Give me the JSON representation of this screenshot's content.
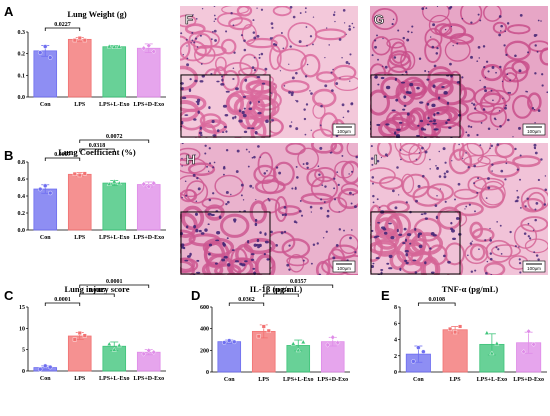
{
  "figure": {
    "panel_letters": [
      "A",
      "B",
      "C",
      "D",
      "E",
      "F",
      "G",
      "H",
      "I"
    ]
  },
  "micrographs": [
    {
      "letter": "F",
      "scale_label": "100μm",
      "style": {
        "base": "#f3c8da",
        "tissue": "#d9689c",
        "nuclei": "#4a2a7a"
      }
    },
    {
      "letter": "G",
      "scale_label": "100μm",
      "style": {
        "base": "#e7a6c6",
        "tissue": "#c84e8a",
        "nuclei": "#3d2170"
      }
    },
    {
      "letter": "H",
      "scale_label": "100μm",
      "style": {
        "base": "#eab2cd",
        "tissue": "#cd5791",
        "nuclei": "#432575"
      }
    },
    {
      "letter": "I",
      "scale_label": "100μm",
      "style": {
        "base": "#f1c3d8",
        "tissue": "#d56597",
        "nuclei": "#462878"
      }
    }
  ],
  "colors": {
    "Con": "#6e6ef0",
    "LPS": "#f27272",
    "LPS+L-Exo": "#3ec47a",
    "LPS+D-Exo": "#df8ce8"
  },
  "chart_data": [
    {
      "letter": "A",
      "type": "bar",
      "title": "Lung Weight (g)",
      "categories": [
        "Con",
        "LPS",
        "LPS+L-Exo",
        "LPS+D-Exo"
      ],
      "values": [
        0.213,
        0.266,
        0.232,
        0.225
      ],
      "errors": [
        0.025,
        0.009,
        0.005,
        0.02
      ],
      "points": [
        [
          0.205,
          0.233,
          0.182
        ],
        [
          0.262,
          0.272,
          0.262
        ],
        [
          0.233,
          0.231,
          0.232
        ],
        [
          0.225,
          0.237,
          0.21
        ]
      ],
      "markers": [
        "circle",
        "square",
        "triangle",
        "diamond"
      ],
      "ylim": [
        0.0,
        0.3
      ],
      "yticks": [
        0.0,
        0.1,
        0.2,
        0.3
      ],
      "tick_labels": [
        "0.0",
        "0.1",
        "0.2",
        "0.3"
      ],
      "comparisons": [
        {
          "from": 0,
          "to": 1,
          "label": "0.0227"
        }
      ]
    },
    {
      "letter": "B",
      "type": "bar",
      "title": "Lung Coefficient (%)",
      "categories": [
        "Con",
        "LPS",
        "LPS+L-Exo",
        "LPS+D-Exo"
      ],
      "values": [
        0.482,
        0.655,
        0.552,
        0.535
      ],
      "errors": [
        0.05,
        0.02,
        0.03,
        0.03
      ],
      "points": [
        [
          0.48,
          0.52,
          0.435
        ],
        [
          0.66,
          0.645,
          0.665
        ],
        [
          0.54,
          0.57,
          0.55
        ],
        [
          0.54,
          0.51,
          0.55
        ]
      ],
      "markers": [
        "circle",
        "square",
        "triangle",
        "diamond"
      ],
      "ylim": [
        0.0,
        0.8
      ],
      "yticks": [
        0.0,
        0.2,
        0.4,
        0.6,
        0.8
      ],
      "tick_labels": [
        "0.0",
        "0.2",
        "0.4",
        "0.6",
        "0.8"
      ],
      "comparisons": [
        {
          "from": 0,
          "to": 1,
          "label": "0.0007"
        },
        {
          "from": 1,
          "to": 2,
          "label": "0.0318"
        },
        {
          "from": 1,
          "to": 3,
          "label": "0.0072"
        }
      ]
    },
    {
      "letter": "C",
      "type": "bar",
      "title": "Lung injury score",
      "categories": [
        "Con",
        "LPS",
        "LPS+L-Exo",
        "LPS+D-Exo"
      ],
      "values": [
        0.8,
        8.2,
        5.8,
        4.4
      ],
      "errors": [
        0.4,
        0.8,
        1.0,
        0.6
      ],
      "points": [
        [
          0.4,
          1.2,
          0.9
        ],
        [
          7.4,
          8.9,
          8.3
        ],
        [
          6.3,
          5.0,
          6.0
        ],
        [
          4.0,
          4.8,
          4.4
        ]
      ],
      "markers": [
        "circle",
        "square",
        "triangle",
        "diamond"
      ],
      "ylim": [
        0,
        15
      ],
      "yticks": [
        0,
        5,
        10,
        15
      ],
      "tick_labels": [
        "0",
        "5",
        "10",
        "15"
      ],
      "comparisons": [
        {
          "from": 0,
          "to": 1,
          "label": "0.0001"
        },
        {
          "from": 1,
          "to": 2,
          "label": "0.0015"
        },
        {
          "from": 1,
          "to": 3,
          "label": "0.0001"
        }
      ]
    },
    {
      "letter": "D",
      "type": "bar",
      "title": "IL-1β (pg/mL)",
      "categories": [
        "Con",
        "LPS",
        "LPS+L-Exo",
        "LPS+D-Exo"
      ],
      "values": [
        280,
        375,
        245,
        280
      ],
      "errors": [
        15,
        60,
        50,
        40
      ],
      "points": [
        [
          272,
          290,
          278
        ],
        [
          330,
          420,
          380
        ],
        [
          260,
          200,
          275
        ],
        [
          250,
          320,
          270
        ]
      ],
      "markers": [
        "circle",
        "square",
        "triangle",
        "diamond"
      ],
      "ylim": [
        0,
        600
      ],
      "yticks": [
        0,
        200,
        400,
        600
      ],
      "tick_labels": [
        "0",
        "200",
        "400",
        "600"
      ],
      "comparisons": [
        {
          "from": 0,
          "to": 1,
          "label": "0.0362"
        },
        {
          "from": 1,
          "to": 2,
          "label": "0.0054"
        },
        {
          "from": 1,
          "to": 3,
          "label": "0.0357"
        }
      ]
    },
    {
      "letter": "E",
      "type": "bar",
      "title": "TNF-α (pg/mL)",
      "categories": [
        "Con",
        "LPS",
        "LPS+L-Exo",
        "LPS+D-Exo"
      ],
      "values": [
        2.2,
        5.2,
        3.4,
        3.6
      ],
      "errors": [
        1.0,
        0.4,
        1.3,
        1.3
      ],
      "points": [
        [
          1.3,
          3.0,
          2.5
        ],
        [
          5.3,
          4.9,
          5.6
        ],
        [
          4.8,
          2.3,
          3.5
        ],
        [
          2.5,
          5.0,
          3.4
        ]
      ],
      "markers": [
        "circle",
        "square",
        "triangle",
        "diamond"
      ],
      "ylim": [
        0,
        8
      ],
      "yticks": [
        0,
        2,
        4,
        6,
        8
      ],
      "tick_labels": [
        "0",
        "2",
        "4",
        "6",
        "8"
      ],
      "comparisons": [
        {
          "from": 0,
          "to": 1,
          "label": "0.0108"
        }
      ]
    }
  ]
}
